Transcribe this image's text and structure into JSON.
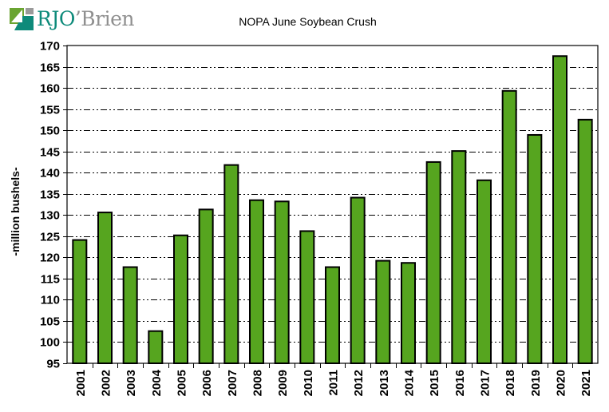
{
  "logo": {
    "text_primary": "RJO",
    "text_apostrophe": "’",
    "text_secondary": "Brien"
  },
  "chart_data": {
    "type": "bar",
    "title": "NOPA June Soybean Crush",
    "xlabel": "",
    "ylabel": "-million bushels-",
    "ylim": [
      95,
      170
    ],
    "yticks": [
      95,
      100,
      105,
      110,
      115,
      120,
      125,
      130,
      135,
      140,
      145,
      150,
      155,
      160,
      165,
      170
    ],
    "grid": true,
    "legend": null,
    "bar_color": "#56a51f",
    "categories": [
      "2001",
      "2002",
      "2003",
      "2004",
      "2005",
      "2006",
      "2007",
      "2008",
      "2009",
      "2010",
      "2011",
      "2012",
      "2013",
      "2014",
      "2015",
      "2016",
      "2017",
      "2018",
      "2019",
      "2020",
      "2021"
    ],
    "values": [
      124.1,
      130.6,
      117.7,
      102.6,
      125.2,
      131.3,
      141.8,
      133.5,
      133.2,
      126.2,
      117.7,
      134.1,
      119.2,
      118.7,
      142.5,
      145.1,
      138.2,
      159.3,
      148.9,
      167.5,
      152.5
    ]
  }
}
